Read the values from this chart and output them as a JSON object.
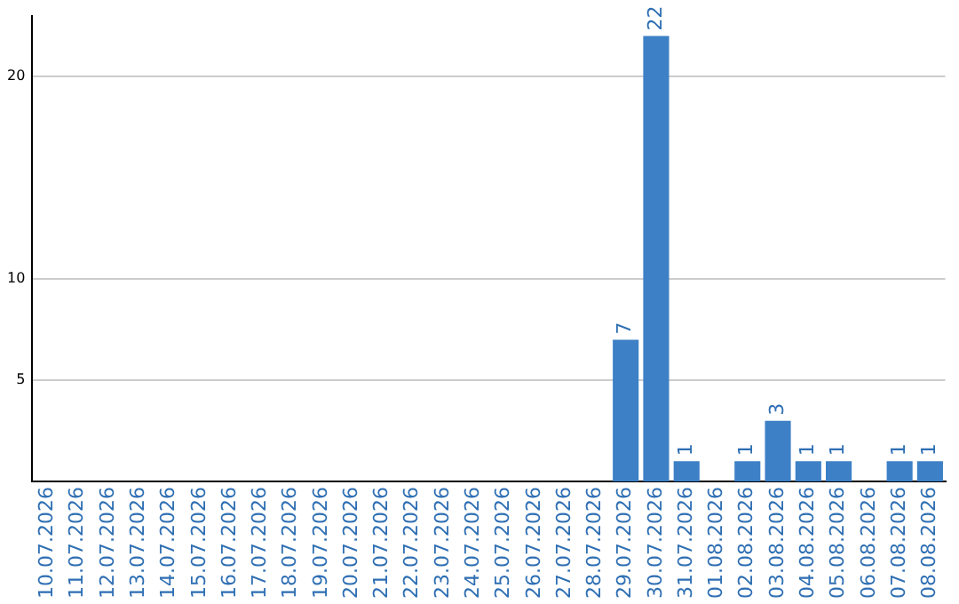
{
  "chart_data": {
    "type": "bar",
    "categories": [
      "10.07.2026",
      "11.07.2026",
      "12.07.2026",
      "13.07.2026",
      "14.07.2026",
      "15.07.2026",
      "16.07.2026",
      "17.07.2026",
      "18.07.2026",
      "19.07.2026",
      "20.07.2026",
      "21.07.2026",
      "22.07.2026",
      "23.07.2026",
      "24.07.2026",
      "25.07.2026",
      "26.07.2026",
      "27.07.2026",
      "28.07.2026",
      "29.07.2026",
      "30.07.2026",
      "31.07.2026",
      "01.08.2026",
      "02.08.2026",
      "03.08.2026",
      "04.08.2026",
      "05.08.2026",
      "06.08.2026",
      "07.08.2026",
      "08.08.2026"
    ],
    "values": [
      0,
      0,
      0,
      0,
      0,
      0,
      0,
      0,
      0,
      0,
      0,
      0,
      0,
      0,
      0,
      0,
      0,
      0,
      0,
      7,
      22,
      1,
      0,
      1,
      3,
      1,
      1,
      0,
      1,
      1
    ],
    "value_labels": [
      null,
      null,
      null,
      null,
      null,
      null,
      null,
      null,
      null,
      null,
      null,
      null,
      null,
      null,
      null,
      null,
      null,
      null,
      null,
      "7",
      "22",
      "1",
      null,
      "1",
      "3",
      "1",
      "1",
      null,
      "1",
      "1"
    ],
    "color": "#3d80c6",
    "ylim": [
      0,
      23
    ],
    "yticks": [
      5,
      10,
      20
    ],
    "grid": "y",
    "legend": false
  }
}
